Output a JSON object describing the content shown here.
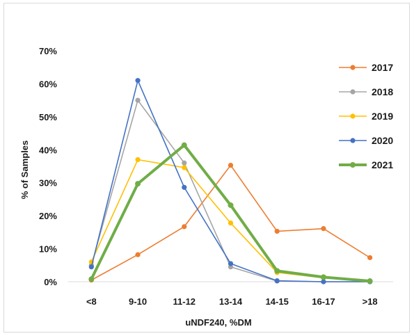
{
  "chart_data": {
    "type": "line",
    "title": "",
    "xlabel": "uNDF240, %DM",
    "ylabel": "% of Samples",
    "categories": [
      "<8",
      "9-10",
      "11-12",
      "13-14",
      "14-15",
      "16-17",
      ">18"
    ],
    "ylim": [
      0,
      70
    ],
    "yticks": [
      "0%",
      "10%",
      "20%",
      "30%",
      "40%",
      "50%",
      "60%",
      "70%"
    ],
    "grid": false,
    "legend_position": "right",
    "series": [
      {
        "name": "2017",
        "color": "#ED7D31",
        "values": [
          0.5,
          8.2,
          16.7,
          35.3,
          15.3,
          16.1,
          7.3
        ]
      },
      {
        "name": "2018",
        "color": "#A5A5A5",
        "values": [
          5.0,
          55.0,
          36.0,
          4.5,
          0.2,
          0.0,
          0.0
        ]
      },
      {
        "name": "2019",
        "color": "#FFC000",
        "values": [
          6.0,
          37.0,
          34.6,
          17.8,
          2.8,
          1.2,
          0.0
        ]
      },
      {
        "name": "2020",
        "color": "#4472C4",
        "values": [
          4.5,
          61.0,
          28.6,
          5.5,
          0.3,
          0.0,
          0.0
        ]
      },
      {
        "name": "2021",
        "color": "#70AD47",
        "values": [
          0.8,
          29.7,
          41.4,
          23.2,
          3.3,
          1.4,
          0.2
        ],
        "bold": true
      }
    ]
  }
}
